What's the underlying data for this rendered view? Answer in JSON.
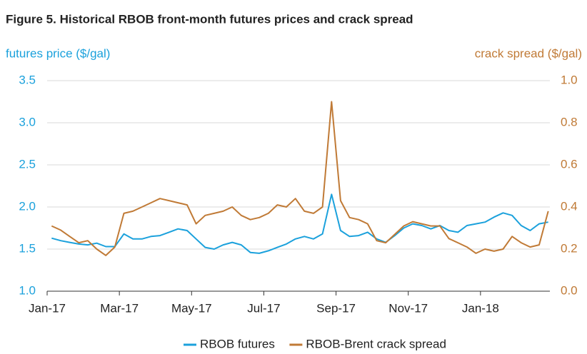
{
  "chart_data": {
    "type": "line",
    "title": "Figure 5. Historical RBOB front-month futures prices and crack spread",
    "y_label": "futures price ($/gal)",
    "y2_label": "crack spread ($/gal)",
    "x": [
      "2017-01",
      "2017-01",
      "2017-01",
      "2017-01",
      "2017-02",
      "2017-02",
      "2017-02",
      "2017-02",
      "2017-03",
      "2017-03",
      "2017-03",
      "2017-03",
      "2017-04",
      "2017-04",
      "2017-04",
      "2017-04",
      "2017-05",
      "2017-05",
      "2017-05",
      "2017-05",
      "2017-06",
      "2017-06",
      "2017-06",
      "2017-06",
      "2017-07",
      "2017-07",
      "2017-07",
      "2017-07",
      "2017-08",
      "2017-08",
      "2017-08",
      "2017-08",
      "2017-09",
      "2017-09",
      "2017-09",
      "2017-09",
      "2017-10",
      "2017-10",
      "2017-10",
      "2017-10",
      "2017-11",
      "2017-11",
      "2017-11",
      "2017-11",
      "2017-12",
      "2017-12",
      "2017-12",
      "2017-12",
      "2018-01",
      "2018-01",
      "2018-01",
      "2018-01",
      "2018-02",
      "2018-02",
      "2018-02",
      "2018-02"
    ],
    "xlim": [
      "2017-01",
      "2018-02"
    ],
    "xticks": [
      {
        "value": "2017-01",
        "label": "Jan-17"
      },
      {
        "value": "2017-03",
        "label": "Mar-17"
      },
      {
        "value": "2017-05",
        "label": "May-17"
      },
      {
        "value": "2017-07",
        "label": "Jul-17"
      },
      {
        "value": "2017-09",
        "label": "Sep-17"
      },
      {
        "value": "2017-11",
        "label": "Nov-17"
      },
      {
        "value": "2018-01",
        "label": "Jan-18"
      }
    ],
    "ylim": [
      1,
      3.5
    ],
    "yticks": [
      {
        "value": 1,
        "label": "1.0"
      },
      1.5,
      {
        "value": 2,
        "label": "2.0"
      },
      2.5,
      {
        "value": 3,
        "label": "3.0"
      },
      3.5
    ],
    "y2lim": [
      0,
      1
    ],
    "y2ticks": [
      {
        "value": 0,
        "label": "0.0"
      },
      0.2,
      0.4,
      0.6,
      0.8,
      {
        "value": 1,
        "label": "1.0"
      }
    ],
    "grid": true,
    "legend": "bottom",
    "series": [
      {
        "name": "RBOB futures",
        "color": "#1ba1dc",
        "values": [
          1.63,
          1.6,
          1.58,
          1.56,
          1.55,
          1.57,
          1.53,
          1.53,
          1.68,
          1.62,
          1.62,
          1.65,
          1.66,
          1.7,
          1.74,
          1.72,
          1.62,
          1.52,
          1.5,
          1.55,
          1.58,
          1.55,
          1.46,
          1.45,
          1.48,
          1.52,
          1.56,
          1.62,
          1.65,
          1.62,
          1.68,
          2.15,
          1.72,
          1.65,
          1.66,
          1.7,
          1.62,
          1.58,
          1.66,
          1.75,
          1.8,
          1.78,
          1.74,
          1.78,
          1.72,
          1.7,
          1.78,
          1.8,
          1.82,
          1.88,
          1.93,
          1.9,
          1.78,
          1.72,
          1.8,
          1.82
        ]
      },
      {
        "name": "RBOB-Brent crack spread",
        "color": "#c07a36",
        "axis": "y2",
        "values": [
          0.31,
          0.29,
          0.26,
          0.23,
          0.24,
          0.2,
          0.17,
          0.21,
          0.37,
          0.38,
          0.4,
          0.42,
          0.44,
          0.43,
          0.42,
          0.41,
          0.32,
          0.36,
          0.37,
          0.38,
          0.4,
          0.36,
          0.34,
          0.35,
          0.37,
          0.41,
          0.4,
          0.44,
          0.38,
          0.37,
          0.4,
          0.9,
          0.43,
          0.35,
          0.34,
          0.32,
          0.24,
          0.23,
          0.27,
          0.31,
          0.33,
          0.32,
          0.31,
          0.31,
          0.25,
          0.23,
          0.21,
          0.18,
          0.2,
          0.19,
          0.2,
          0.26,
          0.23,
          0.21,
          0.22,
          0.38
        ]
      }
    ]
  }
}
